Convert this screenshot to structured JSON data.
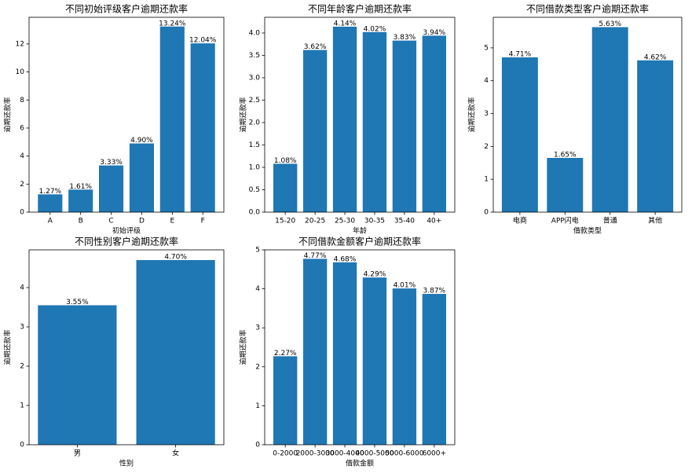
{
  "chart_data": [
    {
      "type": "bar",
      "title": "不同初始评级客户逾期还款率",
      "xlabel": "初始评级",
      "ylabel": "逾期还款率",
      "color": "#1f77b4",
      "categories": [
        "A",
        "B",
        "C",
        "D",
        "E",
        "F"
      ],
      "values": [
        1.27,
        1.61,
        3.33,
        4.9,
        13.24,
        12.04
      ],
      "value_labels": [
        "1.27%",
        "1.61%",
        "3.33%",
        "4.90%",
        "13.24%",
        "12.04%"
      ],
      "ylim": [
        0,
        13.9
      ],
      "yticks": [
        0,
        2,
        4,
        6,
        8,
        10,
        12
      ]
    },
    {
      "type": "bar",
      "title": "不同年龄客户逾期还款率",
      "xlabel": "年龄",
      "ylabel": "逾期还款率",
      "color": "#1f77b4",
      "categories": [
        "15-20",
        "20-25",
        "25-30",
        "30-35",
        "35-40",
        "40+"
      ],
      "values": [
        1.08,
        3.62,
        4.14,
        4.02,
        3.83,
        3.94
      ],
      "value_labels": [
        "1.08%",
        "3.62%",
        "4.14%",
        "4.02%",
        "3.83%",
        "3.94%"
      ],
      "ylim": [
        0,
        4.35
      ],
      "yticks": [
        {
          "value": 0,
          "label": "0.0"
        },
        0.5,
        {
          "value": 1,
          "label": "1.0"
        },
        1.5,
        {
          "value": 2,
          "label": "2.0"
        },
        2.5,
        {
          "value": 3,
          "label": "3.0"
        },
        3.5,
        {
          "value": 4,
          "label": "4.0"
        }
      ]
    },
    {
      "type": "bar",
      "title": "不同借款类型客户逾期还款率",
      "xlabel": "借款类型",
      "ylabel": "逾期还款率",
      "color": "#1f77b4",
      "categories": [
        "电商",
        "APP闪电",
        "普通",
        "其他"
      ],
      "values": [
        4.71,
        1.65,
        5.63,
        4.62
      ],
      "value_labels": [
        "4.71%",
        "1.65%",
        "5.63%",
        "4.62%"
      ],
      "ylim": [
        0,
        5.93
      ],
      "yticks": [
        0,
        1,
        2,
        3,
        4,
        5
      ]
    },
    {
      "type": "bar",
      "title": "不同性别客户逾期还款率",
      "xlabel": "性别",
      "ylabel": "逾期还款率",
      "color": "#1f77b4",
      "categories": [
        "男",
        "女"
      ],
      "values": [
        3.55,
        4.7
      ],
      "value_labels": [
        "3.55%",
        "4.70%"
      ],
      "ylim": [
        0,
        4.96
      ],
      "yticks": [
        0,
        1,
        2,
        3,
        4
      ]
    },
    {
      "type": "bar",
      "title": "不同借款金额客户逾期还款率",
      "xlabel": "借款金额",
      "ylabel": "逾期还款率",
      "color": "#1f77b4",
      "categories": [
        "0-2000",
        "2000-3000",
        "3000-4000",
        "4000-5000",
        "5000-6000",
        "6000+"
      ],
      "values": [
        2.27,
        4.77,
        4.68,
        4.29,
        4.01,
        3.87
      ],
      "value_labels": [
        "2.27%",
        "4.77%",
        "4.68%",
        "4.29%",
        "4.01%",
        "3.87%"
      ],
      "ylim": [
        0,
        5
      ],
      "yticks": [
        0,
        1,
        2,
        3,
        4,
        5
      ]
    }
  ]
}
